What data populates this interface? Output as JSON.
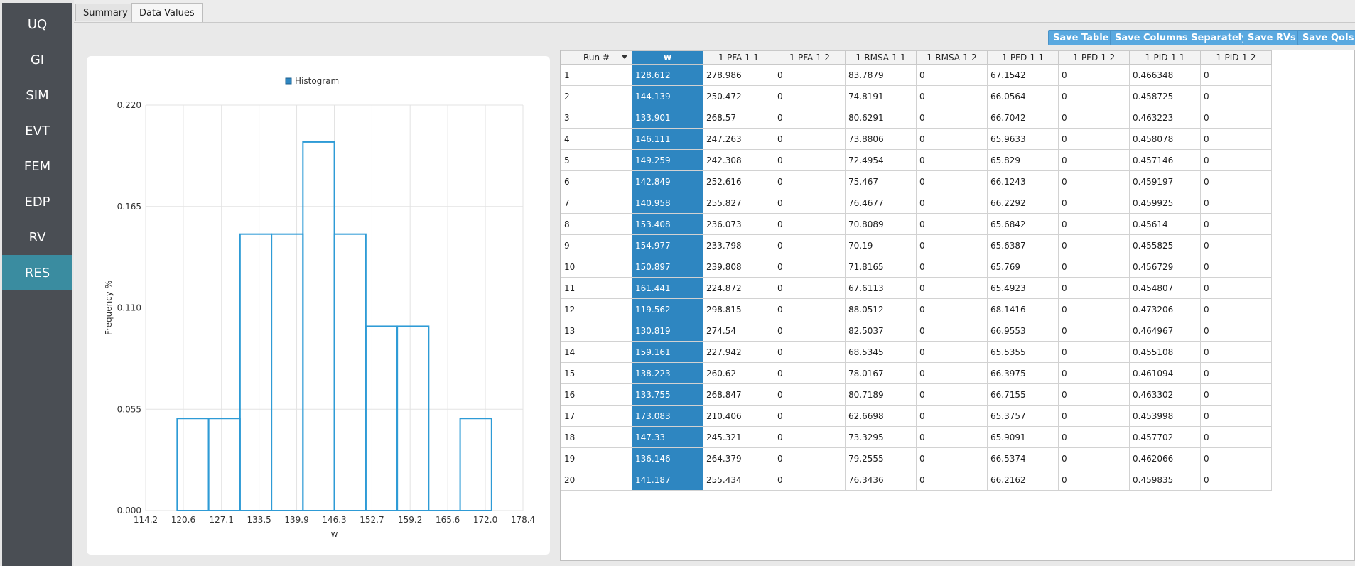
{
  "nav": {
    "items": [
      {
        "label": "UQ"
      },
      {
        "label": "GI"
      },
      {
        "label": "SIM"
      },
      {
        "label": "EVT"
      },
      {
        "label": "FEM"
      },
      {
        "label": "EDP"
      },
      {
        "label": "RV"
      },
      {
        "label": "RES",
        "active": true
      }
    ]
  },
  "tabs": [
    {
      "label": "Summary"
    },
    {
      "label": "Data Values",
      "active": true
    }
  ],
  "buttons": {
    "save_table": "Save Table",
    "save_columns": "Save Columns Separately",
    "save_rvs": "Save RVs",
    "save_qois": "Save QoIs"
  },
  "colors": {
    "accent": "#2e86c1",
    "histogram": "#2e9bd6",
    "sidebar": "#4a4e54",
    "sidebar_active": "#3a8ca0",
    "button": "#5aa9e0"
  },
  "chart_data": {
    "type": "bar",
    "legend": "Histogram",
    "legend_position": "top-center",
    "xlabel": "w",
    "ylabel": "Frequency %",
    "xlim": [
      114.2,
      178.4
    ],
    "ylim": [
      0.0,
      0.22
    ],
    "x_ticks": [
      "114.2",
      "120.6",
      "127.1",
      "133.5",
      "139.9",
      "146.3",
      "152.7",
      "159.2",
      "165.6",
      "172.0",
      "178.4"
    ],
    "y_ticks": [
      "0.000",
      "0.055",
      "0.110",
      "0.165",
      "0.220"
    ],
    "grid": true,
    "bin_width": 5.35,
    "bins": [
      {
        "x0": 119.562,
        "x1": 124.91,
        "value": 0.05
      },
      {
        "x0": 124.91,
        "x1": 130.26,
        "value": 0.05
      },
      {
        "x0": 130.26,
        "x1": 135.61,
        "value": 0.15
      },
      {
        "x0": 135.61,
        "x1": 140.96,
        "value": 0.15
      },
      {
        "x0": 140.96,
        "x1": 146.31,
        "value": 0.2
      },
      {
        "x0": 146.31,
        "x1": 151.66,
        "value": 0.15
      },
      {
        "x0": 151.66,
        "x1": 157.01,
        "value": 0.1
      },
      {
        "x0": 157.01,
        "x1": 162.36,
        "value": 0.1
      },
      {
        "x0": 162.36,
        "x1": 167.71,
        "value": 0.0
      },
      {
        "x0": 167.71,
        "x1": 173.06,
        "value": 0.05
      }
    ]
  },
  "table": {
    "columns": [
      "Run #",
      "w",
      "1-PFA-1-1",
      "1-PFA-1-2",
      "1-RMSA-1-1",
      "1-RMSA-1-2",
      "1-PFD-1-1",
      "1-PFD-1-2",
      "1-PID-1-1",
      "1-PID-1-2"
    ],
    "selected_column": 1,
    "rows": [
      [
        "1",
        "128.612",
        "278.986",
        "0",
        "83.7879",
        "0",
        "67.1542",
        "0",
        "0.466348",
        "0"
      ],
      [
        "2",
        "144.139",
        "250.472",
        "0",
        "74.8191",
        "0",
        "66.0564",
        "0",
        "0.458725",
        "0"
      ],
      [
        "3",
        "133.901",
        "268.57",
        "0",
        "80.6291",
        "0",
        "66.7042",
        "0",
        "0.463223",
        "0"
      ],
      [
        "4",
        "146.111",
        "247.263",
        "0",
        "73.8806",
        "0",
        "65.9633",
        "0",
        "0.458078",
        "0"
      ],
      [
        "5",
        "149.259",
        "242.308",
        "0",
        "72.4954",
        "0",
        "65.829",
        "0",
        "0.457146",
        "0"
      ],
      [
        "6",
        "142.849",
        "252.616",
        "0",
        "75.467",
        "0",
        "66.1243",
        "0",
        "0.459197",
        "0"
      ],
      [
        "7",
        "140.958",
        "255.827",
        "0",
        "76.4677",
        "0",
        "66.2292",
        "0",
        "0.459925",
        "0"
      ],
      [
        "8",
        "153.408",
        "236.073",
        "0",
        "70.8089",
        "0",
        "65.6842",
        "0",
        "0.45614",
        "0"
      ],
      [
        "9",
        "154.977",
        "233.798",
        "0",
        "70.19",
        "0",
        "65.6387",
        "0",
        "0.455825",
        "0"
      ],
      [
        "10",
        "150.897",
        "239.808",
        "0",
        "71.8165",
        "0",
        "65.769",
        "0",
        "0.456729",
        "0"
      ],
      [
        "11",
        "161.441",
        "224.872",
        "0",
        "67.6113",
        "0",
        "65.4923",
        "0",
        "0.454807",
        "0"
      ],
      [
        "12",
        "119.562",
        "298.815",
        "0",
        "88.0512",
        "0",
        "68.1416",
        "0",
        "0.473206",
        "0"
      ],
      [
        "13",
        "130.819",
        "274.54",
        "0",
        "82.5037",
        "0",
        "66.9553",
        "0",
        "0.464967",
        "0"
      ],
      [
        "14",
        "159.161",
        "227.942",
        "0",
        "68.5345",
        "0",
        "65.5355",
        "0",
        "0.455108",
        "0"
      ],
      [
        "15",
        "138.223",
        "260.62",
        "0",
        "78.0167",
        "0",
        "66.3975",
        "0",
        "0.461094",
        "0"
      ],
      [
        "16",
        "133.755",
        "268.847",
        "0",
        "80.7189",
        "0",
        "66.7155",
        "0",
        "0.463302",
        "0"
      ],
      [
        "17",
        "173.083",
        "210.406",
        "0",
        "62.6698",
        "0",
        "65.3757",
        "0",
        "0.453998",
        "0"
      ],
      [
        "18",
        "147.33",
        "245.321",
        "0",
        "73.3295",
        "0",
        "65.9091",
        "0",
        "0.457702",
        "0"
      ],
      [
        "19",
        "136.146",
        "264.379",
        "0",
        "79.2555",
        "0",
        "66.5374",
        "0",
        "0.462066",
        "0"
      ],
      [
        "20",
        "141.187",
        "255.434",
        "0",
        "76.3436",
        "0",
        "66.2162",
        "0",
        "0.459835",
        "0"
      ]
    ]
  }
}
